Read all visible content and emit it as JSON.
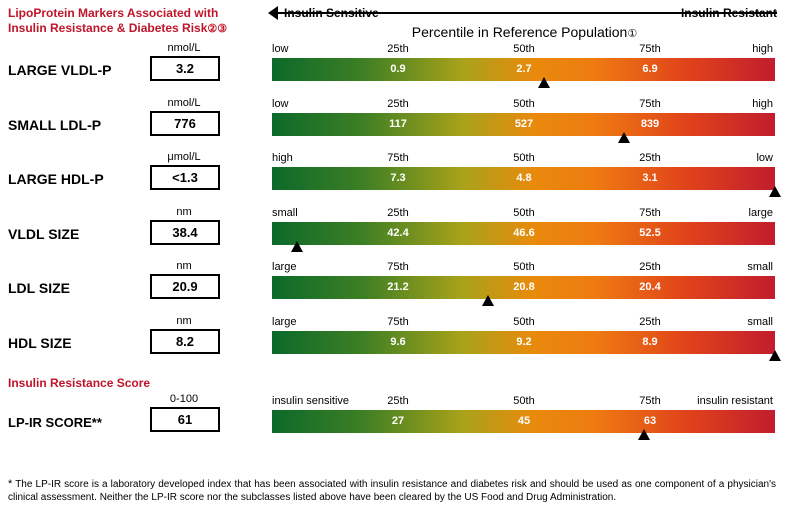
{
  "header": {
    "title_line1": "LipoProtein Markers Associated with",
    "title_line2": "Insulin Resistance & Diabetes Risk",
    "title_refs": "②③",
    "sensitive_label": "Insulin Sensitive",
    "resistant_label": "Insulin Resistant",
    "percentile_title": "Percentile in Reference Population",
    "percentile_ref": "①"
  },
  "markers": [
    {
      "name": "LARGE VLDL-P",
      "unit": "nmol/L",
      "value": "3.2",
      "ticks": [
        "low",
        "25th",
        "50th",
        "75th",
        "high"
      ],
      "bar_values": [
        "0.9",
        "2.7",
        "6.9"
      ],
      "marker_percentile": 54
    },
    {
      "name": "SMALL LDL-P",
      "unit": "nmol/L",
      "value": "776",
      "ticks": [
        "low",
        "25th",
        "50th",
        "75th",
        "high"
      ],
      "bar_values": [
        "117",
        "527",
        "839"
      ],
      "marker_percentile": 70
    },
    {
      "name": "LARGE HDL-P",
      "unit": "μmol/L",
      "value": "<1.3",
      "ticks": [
        "high",
        "75th",
        "50th",
        "25th",
        "low"
      ],
      "bar_values": [
        "7.3",
        "4.8",
        "3.1"
      ],
      "marker_percentile": 100
    },
    {
      "name": "VLDL SIZE",
      "unit": "nm",
      "value": "38.4",
      "ticks": [
        "small",
        "25th",
        "50th",
        "75th",
        "large"
      ],
      "bar_values": [
        "42.4",
        "46.6",
        "52.5"
      ],
      "marker_percentile": 5
    },
    {
      "name": "LDL SIZE",
      "unit": "nm",
      "value": "20.9",
      "ticks": [
        "large",
        "75th",
        "50th",
        "25th",
        "small"
      ],
      "bar_values": [
        "21.2",
        "20.8",
        "20.4"
      ],
      "marker_percentile": 43
    },
    {
      "name": "HDL SIZE",
      "unit": "nm",
      "value": "8.2",
      "ticks": [
        "large",
        "75th",
        "50th",
        "25th",
        "small"
      ],
      "bar_values": [
        "9.6",
        "9.2",
        "8.9"
      ],
      "marker_percentile": 100
    }
  ],
  "lpir": {
    "section_title": "Insulin Resistance Score",
    "name": "LP-IR SCORE",
    "name_suffix": "**",
    "unit": "0-100",
    "value": "61",
    "ticks": [
      "insulin sensitive",
      "25th",
      "50th",
      "75th",
      "insulin resistant"
    ],
    "bar_values": [
      "27",
      "45",
      "63"
    ],
    "marker_percentile": 74
  },
  "footnote": {
    "star": "*",
    "text": "The LP-IR score is a laboratory developed index that has been associated with insulin resistance and diabetes risk and should be used as one component of a physician's clinical assessment. Neither the LP-IR score nor the subclasses listed above have been cleared by the US Food and Drug Administration."
  },
  "colors": {
    "title_red": "#c0142a",
    "bar_green": "#0b6a2a",
    "bar_orange": "#e98a0c",
    "bar_red": "#c11d2e"
  }
}
